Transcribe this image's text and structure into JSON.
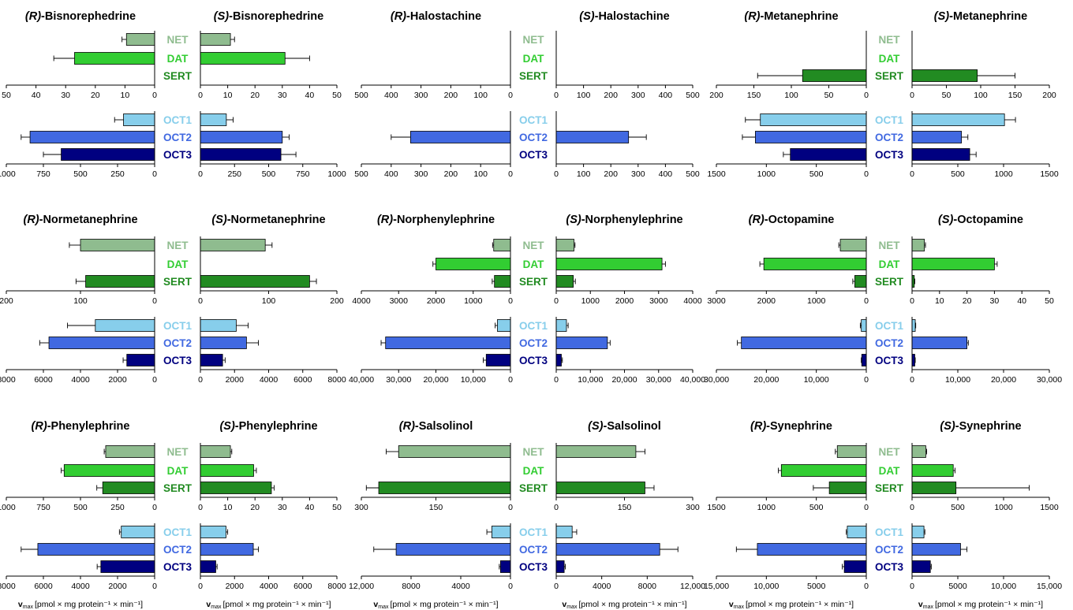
{
  "figure": {
    "xlabel": {
      "symbol": "v",
      "subscript": "max",
      "unit": "[pmol × mg protein⁻¹ × min⁻¹]"
    }
  },
  "transporters_upper": [
    "NET",
    "DAT",
    "SERT"
  ],
  "transporters_lower": [
    "OCT1",
    "OCT2",
    "OCT3"
  ],
  "colors": {
    "NET": "#8fbc8f",
    "DAT": "#32cd32",
    "SERT": "#228b22",
    "OCT1": "#87ceeb",
    "OCT2": "#4169e1",
    "OCT3": "#000080"
  },
  "chart_data": [
    {
      "type": "bar",
      "compound": "Bisnorephedrine",
      "title_left": {
        "prefix": "(R)",
        "name": "-Bisnorephedrine"
      },
      "title_right": {
        "prefix": "(S)",
        "name": "-Bisnorephedrine"
      },
      "upper_ticks": [
        "50",
        "40",
        "30",
        "20",
        "10",
        "0",
        "10",
        "20",
        "30",
        "40",
        "50"
      ],
      "upper_max": 50,
      "lower_ticks": [
        "1000",
        "750",
        "500",
        "250",
        "0",
        "250",
        "500",
        "750",
        "1000"
      ],
      "lower_max": 1000,
      "R": {
        "NET": [
          9.5,
          1.5
        ],
        "DAT": [
          27,
          7
        ],
        "SERT": null,
        "OCT1": [
          210,
          60
        ],
        "OCT2": [
          840,
          60
        ],
        "OCT3": [
          630,
          120
        ]
      },
      "S": {
        "NET": [
          11,
          1.5
        ],
        "DAT": [
          31,
          9
        ],
        "SERT": null,
        "OCT1": [
          190,
          50
        ],
        "OCT2": [
          600,
          50
        ],
        "OCT3": [
          590,
          110
        ]
      }
    },
    {
      "type": "bar",
      "compound": "Halostachine",
      "title_left": {
        "prefix": "(R)",
        "name": "-Halostachine"
      },
      "title_right": {
        "prefix": "(S)",
        "name": "-Halostachine"
      },
      "upper_ticks": [
        "500",
        "400",
        "300",
        "200",
        "100",
        "0",
        "100",
        "200",
        "300",
        "400",
        "500"
      ],
      "upper_max": 500,
      "lower_ticks": [
        "500",
        "400",
        "300",
        "200",
        "100",
        "0",
        "100",
        "200",
        "300",
        "400",
        "500"
      ],
      "lower_max": 500,
      "R": {
        "NET": null,
        "DAT": null,
        "SERT": null,
        "OCT1": null,
        "OCT2": [
          335,
          65
        ],
        "OCT3": null
      },
      "S": {
        "NET": null,
        "DAT": null,
        "SERT": null,
        "OCT1": null,
        "OCT2": [
          265,
          65
        ],
        "OCT3": null
      }
    },
    {
      "type": "bar",
      "compound": "Metanephrine",
      "title_left": {
        "prefix": "(R)",
        "name": "-Metanephrine"
      },
      "title_right": {
        "prefix": "(S)",
        "name": "-Metanephrine"
      },
      "upper_ticks": [
        "200",
        "150",
        "100",
        "50",
        "0",
        "50",
        "100",
        "150",
        "200"
      ],
      "upper_max": 200,
      "lower_ticks": [
        "1500",
        "1000",
        "500",
        "0",
        "500",
        "1000",
        "1500"
      ],
      "lower_max": 1500,
      "R": {
        "NET": null,
        "DAT": null,
        "SERT": [
          85,
          60
        ],
        "OCT1": [
          1060,
          150
        ],
        "OCT2": [
          1110,
          130
        ],
        "OCT3": [
          760,
          70
        ]
      },
      "S": {
        "NET": null,
        "DAT": null,
        "SERT": [
          95,
          55
        ],
        "OCT1": [
          1010,
          120
        ],
        "OCT2": [
          540,
          70
        ],
        "OCT3": [
          630,
          70
        ]
      }
    },
    {
      "type": "bar",
      "compound": "Normetanephrine",
      "title_left": {
        "prefix": "(R)",
        "name": "-Normetanephrine"
      },
      "title_right": {
        "prefix": "(S)",
        "name": "-Normetanephrine"
      },
      "upper_ticks": [
        "200",
        "100",
        "0",
        "100",
        "200"
      ],
      "upper_max": 200,
      "lower_ticks": [
        "8000",
        "6000",
        "4000",
        "2000",
        "0",
        "2000",
        "4000",
        "6000",
        "8000"
      ],
      "lower_max": 8000,
      "R": {
        "NET": [
          100,
          15
        ],
        "DAT": null,
        "SERT": [
          93,
          13
        ],
        "OCT1": [
          3200,
          1500
        ],
        "OCT2": [
          5700,
          500
        ],
        "OCT3": [
          1500,
          200
        ]
      },
      "S": {
        "NET": [
          95,
          10
        ],
        "DAT": null,
        "SERT": [
          160,
          10
        ],
        "OCT1": [
          2100,
          700
        ],
        "OCT2": [
          2700,
          700
        ],
        "OCT3": [
          1300,
          150
        ]
      }
    },
    {
      "type": "bar",
      "compound": "Norphenylephrine",
      "title_left": {
        "prefix": "(R)",
        "name": "-Norphenylephrine"
      },
      "title_right": {
        "prefix": "(S)",
        "name": "-Norphenylephrine"
      },
      "upper_ticks": [
        "4000",
        "3000",
        "2000",
        "1000",
        "0",
        "1000",
        "2000",
        "3000",
        "4000"
      ],
      "upper_max": 4000,
      "lower_ticks": [
        "40,000",
        "30,000",
        "20,000",
        "10,000",
        "0",
        "10,000",
        "20,000",
        "30,000",
        "40,000"
      ],
      "lower_max": 40000,
      "R": {
        "NET": [
          450,
          30
        ],
        "DAT": [
          2000,
          80
        ],
        "SERT": [
          430,
          60
        ],
        "OCT1": [
          3500,
          600
        ],
        "OCT2": [
          33500,
          1200
        ],
        "OCT3": [
          6500,
          800
        ]
      },
      "S": {
        "NET": [
          520,
          30
        ],
        "DAT": [
          3100,
          100
        ],
        "SERT": [
          500,
          60
        ],
        "OCT1": [
          3000,
          500
        ],
        "OCT2": [
          15000,
          800
        ],
        "OCT3": [
          1500,
          300
        ]
      }
    },
    {
      "type": "bar",
      "compound": "Octopamine",
      "title_left": {
        "prefix": "(R)",
        "name": "-Octopamine"
      },
      "title_right": {
        "prefix": "(S)",
        "name": "-Octopamine"
      },
      "upper_ticks": [
        "3000",
        "2000",
        "1000",
        "0",
        "10",
        "20",
        "30",
        "40",
        "50"
      ],
      "upper_max_left": 3000,
      "upper_max_right": 50,
      "lower_ticks": [
        "30,000",
        "20,000",
        "10,000",
        "0",
        "10,000",
        "20,000",
        "30,000"
      ],
      "lower_max": 30000,
      "R": {
        "NET": [
          520,
          30
        ],
        "DAT": [
          2050,
          80
        ],
        "SERT": [
          230,
          40
        ],
        "OCT1": [
          1000,
          200
        ],
        "OCT2": [
          25000,
          800
        ],
        "OCT3": [
          900,
          100
        ]
      },
      "S": {
        "NET": [
          4.5,
          0.4
        ],
        "DAT": [
          30,
          1
        ],
        "SERT": [
          0.8,
          0.2
        ],
        "OCT1": [
          700,
          100
        ],
        "OCT2": [
          12000,
          300
        ],
        "OCT3": [
          600,
          100
        ]
      }
    },
    {
      "type": "bar",
      "compound": "Phenylephrine",
      "title_left": {
        "prefix": "(R)",
        "name": "-Phenylephrine"
      },
      "title_right": {
        "prefix": "(S)",
        "name": "-Phenylephrine"
      },
      "upper_ticks": [
        "1000",
        "750",
        "500",
        "250",
        "0",
        "10",
        "20",
        "30",
        "40",
        "50"
      ],
      "upper_max_left": 1000,
      "upper_max_right": 50,
      "lower_ticks": [
        "8000",
        "6000",
        "4000",
        "2000",
        "0",
        "2000",
        "4000",
        "6000",
        "8000"
      ],
      "lower_max": 8000,
      "R": {
        "NET": [
          330,
          10
        ],
        "DAT": [
          610,
          20
        ],
        "SERT": [
          350,
          40
        ],
        "OCT1": [
          1800,
          100
        ],
        "OCT2": [
          6300,
          900
        ],
        "OCT3": [
          2900,
          200
        ]
      },
      "S": {
        "NET": [
          11,
          0.5
        ],
        "DAT": [
          19.5,
          1
        ],
        "SERT": [
          26,
          1
        ],
        "OCT1": [
          1500,
          100
        ],
        "OCT2": [
          3100,
          300
        ],
        "OCT3": [
          900,
          80
        ]
      }
    },
    {
      "type": "bar",
      "compound": "Salsolinol",
      "title_left": {
        "prefix": "(R)",
        "name": "-Salsolinol"
      },
      "title_right": {
        "prefix": "(S)",
        "name": "-Salsolinol"
      },
      "upper_ticks": [
        "300",
        "150",
        "0",
        "150",
        "300"
      ],
      "upper_max": 300,
      "lower_ticks": [
        "12,000",
        "8000",
        "4000",
        "0",
        "4000",
        "8000",
        "12,000"
      ],
      "lower_max": 12000,
      "R": {
        "NET": [
          225,
          25
        ],
        "DAT": null,
        "SERT": [
          265,
          25
        ],
        "OCT1": [
          1500,
          400
        ],
        "OCT2": [
          9200,
          1800
        ],
        "OCT3": [
          800,
          100
        ]
      },
      "S": {
        "NET": [
          175,
          20
        ],
        "DAT": null,
        "SERT": [
          195,
          20
        ],
        "OCT1": [
          1400,
          400
        ],
        "OCT2": [
          9100,
          1600
        ],
        "OCT3": [
          700,
          100
        ]
      }
    },
    {
      "type": "bar",
      "compound": "Synephrine",
      "title_left": {
        "prefix": "(R)",
        "name": "-Synephrine"
      },
      "title_right": {
        "prefix": "(S)",
        "name": "-Synephrine"
      },
      "upper_ticks": [
        "1500",
        "1000",
        "500",
        "0",
        "500",
        "1000",
        "1500"
      ],
      "upper_max": 1500,
      "lower_ticks": [
        "15,000",
        "10,000",
        "5000",
        "0",
        "5000",
        "10,000",
        "15,000"
      ],
      "lower_max": 15000,
      "R": {
        "NET": [
          290,
          20
        ],
        "DAT": [
          850,
          30
        ],
        "SERT": [
          370,
          160
        ],
        "OCT1": [
          1900,
          100
        ],
        "OCT2": [
          10900,
          2100
        ],
        "OCT3": [
          2200,
          200
        ]
      },
      "S": {
        "NET": [
          150,
          10
        ],
        "DAT": [
          450,
          20
        ],
        "SERT": [
          480,
          800
        ],
        "OCT1": [
          1300,
          100
        ],
        "OCT2": [
          5300,
          700
        ],
        "OCT3": [
          2000,
          100
        ]
      }
    }
  ]
}
